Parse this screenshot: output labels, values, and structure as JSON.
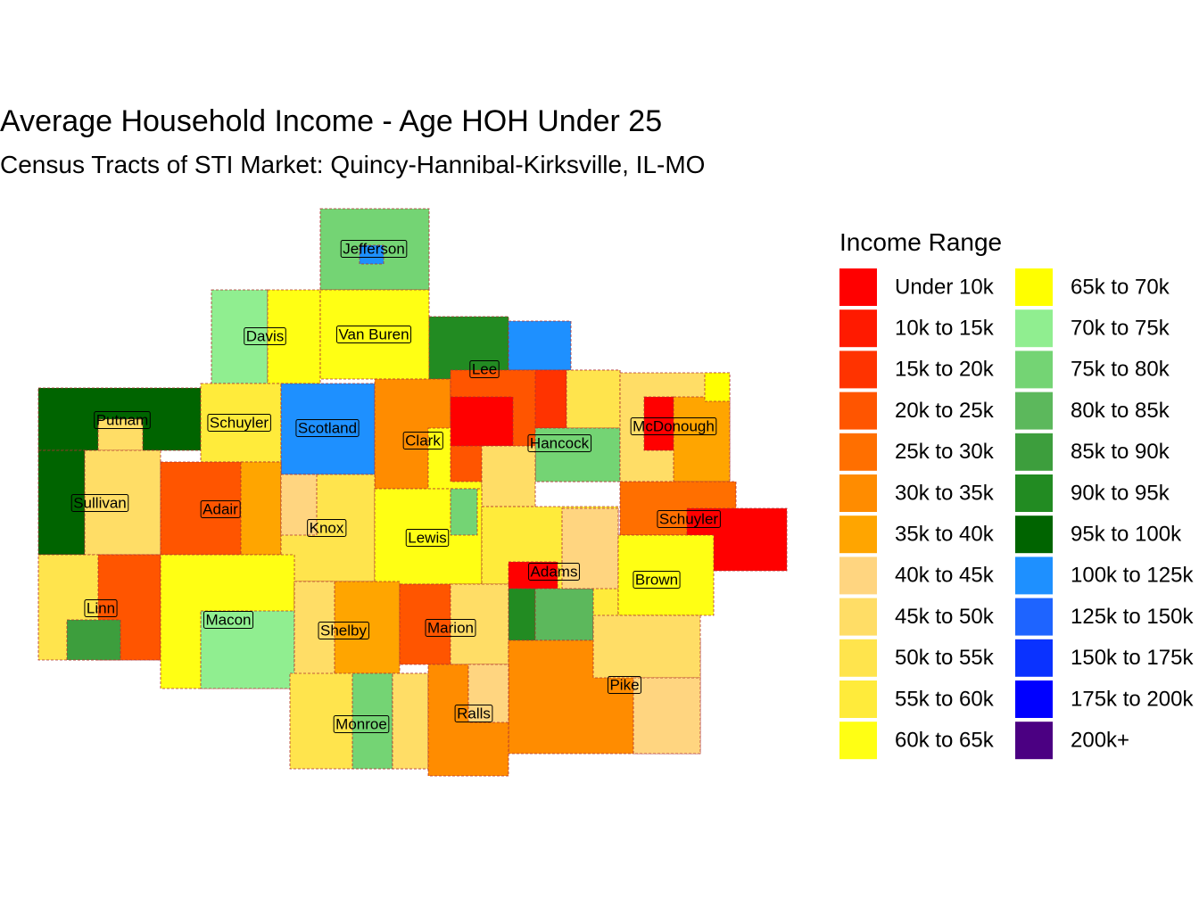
{
  "title": "Average Household Income - Age HOH Under 25",
  "subtitle": "Census Tracts of STI Market: Quincy-Hannibal-Kirksville, IL-MO",
  "legend": {
    "title": "Income Range",
    "items": [
      {
        "label": "Under 10k",
        "color": "#ff0000"
      },
      {
        "label": "10k to 15k",
        "color": "#ff1a00"
      },
      {
        "label": "15k to 20k",
        "color": "#ff3300"
      },
      {
        "label": "20k to 25k",
        "color": "#ff5500"
      },
      {
        "label": "25k to 30k",
        "color": "#ff6f00"
      },
      {
        "label": "30k to 35k",
        "color": "#ff8c00"
      },
      {
        "label": "35k to 40k",
        "color": "#ffa500"
      },
      {
        "label": "40k to 45k",
        "color": "#ffd580"
      },
      {
        "label": "45k to 50k",
        "color": "#ffdd66"
      },
      {
        "label": "50k to 55k",
        "color": "#ffe44d"
      },
      {
        "label": "55k to 60k",
        "color": "#ffeb3b"
      },
      {
        "label": "60k to 65k",
        "color": "#ffff14"
      },
      {
        "label": "65k to 70k",
        "color": "#ffff00"
      },
      {
        "label": "70k to 75k",
        "color": "#90ee90"
      },
      {
        "label": "75k to 80k",
        "color": "#74d474"
      },
      {
        "label": "80k to 85k",
        "color": "#5cb85c"
      },
      {
        "label": "85k to 90k",
        "color": "#3d9e3d"
      },
      {
        "label": "90k to 95k",
        "color": "#228b22"
      },
      {
        "label": "95k to 100k",
        "color": "#006400"
      },
      {
        "label": "100k to 125k",
        "color": "#1e90ff"
      },
      {
        "label": "125k to 150k",
        "color": "#1e64ff"
      },
      {
        "label": "150k to 175k",
        "color": "#0a32ff"
      },
      {
        "label": "175k to 200k",
        "color": "#0000ff"
      },
      {
        "label": "200k+",
        "color": "#4b0082"
      }
    ]
  },
  "counties": [
    "Jefferson",
    "Davis",
    "Van Buren",
    "Lee",
    "Putnam",
    "Schuyler",
    "Scotland",
    "Clark",
    "Hancock",
    "McDonough",
    "Sullivan",
    "Adair",
    "Knox",
    "Lewis",
    "Schuyler",
    "Adams",
    "Brown",
    "Linn",
    "Macon",
    "Shelby",
    "Marion",
    "Pike",
    "Monroe",
    "Ralls"
  ]
}
